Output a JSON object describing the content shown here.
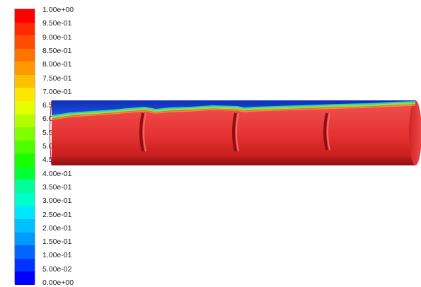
{
  "legend": {
    "labels": [
      "1.00e+00",
      "9.50e-01",
      "9.00e-01",
      "8.50e-01",
      "8.00e-01",
      "7.50e-01",
      "7.00e-01",
      "6.50e-01",
      "6.00e-01",
      "5.50e-01",
      "5.00e-01",
      "4.50e-01",
      "4.00e-01",
      "3.50e-01",
      "3.00e-01",
      "2.50e-01",
      "2.00e-01",
      "1.50e-01",
      "1.00e-01",
      "5.00e-02",
      "0.00e+00"
    ],
    "colors": [
      "#ff0000",
      "#ff2a00",
      "#ff4d00",
      "#ff7300",
      "#ff9900",
      "#ffc000",
      "#ffe600",
      "#e6ff00",
      "#b3ff00",
      "#80ff00",
      "#4dff00",
      "#1aff00",
      "#00ff33",
      "#00ff99",
      "#00ffcc",
      "#00e6ff",
      "#00bfff",
      "#0099ff",
      "#0066ff",
      "#0033ff",
      "#0000ff"
    ]
  },
  "scene": {
    "pipe_color": "#e53131",
    "top_phase_color": "#1340d8",
    "interface_color": "#9be02f"
  }
}
